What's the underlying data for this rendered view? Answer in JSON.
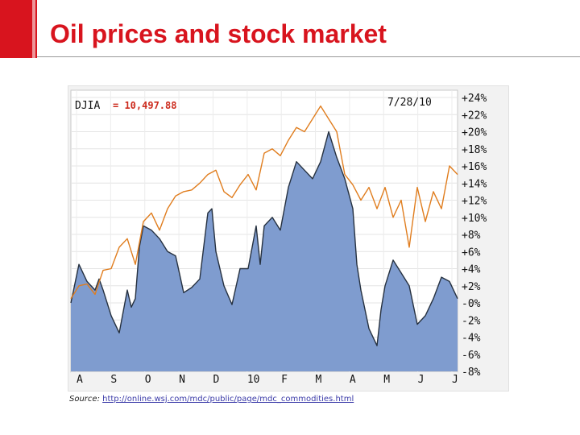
{
  "slide": {
    "title": "Oil prices and stock market",
    "source_label": "Source:",
    "source_url": "http://online.wsj.com/mdc/public/page/mdc_commodities.html"
  },
  "colors": {
    "accent": "#d8141e",
    "area_fill": "#7f9ccf",
    "area_line": "#263140",
    "oil_line": "#e07d1e",
    "value_text": "#cc2b1d"
  },
  "chart_data": {
    "type": "area",
    "header_label": "DJIA",
    "header_value": "= 10,497.88",
    "date_label": "7/28/10",
    "x_tick_labels": [
      "A",
      "S",
      "O",
      "N",
      "D",
      "10",
      "F",
      "M",
      "A",
      "M",
      "J",
      "J"
    ],
    "y_tick_labels": [
      "+24%",
      "+22%",
      "+20%",
      "+18%",
      "+16%",
      "+14%",
      "+12%",
      "+10%",
      "+8%",
      "+6%",
      "+4%",
      "+2%",
      "-0%",
      "-2%",
      "-4%",
      "-6%",
      "-8%"
    ],
    "ylim": [
      -8,
      24
    ],
    "x_range": [
      0,
      48
    ],
    "grid": true,
    "series": [
      {
        "type": "area",
        "x": [
          0,
          1,
          1.5,
          2,
          3,
          3.5,
          4,
          5,
          6,
          7,
          7.5,
          8,
          8.5,
          9,
          10,
          11,
          12,
          13,
          14,
          15,
          16,
          17,
          17.5,
          18,
          19,
          20,
          21,
          22,
          23,
          23.5,
          24,
          25,
          26,
          27,
          28,
          29,
          30,
          31,
          32,
          33,
          34,
          35,
          35.5,
          36,
          37,
          38,
          38.5,
          39,
          40,
          41,
          42,
          43,
          44,
          45,
          46,
          47,
          48
        ],
        "values": [
          0,
          4.5,
          3.5,
          2.5,
          1.5,
          2.8,
          1.5,
          -1.5,
          -3.5,
          1.5,
          -0.5,
          0.5,
          6.5,
          9,
          8.5,
          7.5,
          6,
          5.5,
          1.2,
          1.8,
          2.8,
          10.5,
          11,
          6,
          2,
          -0.2,
          4,
          4,
          9,
          4.5,
          9,
          10,
          8.5,
          13.5,
          16.5,
          15.5,
          14.5,
          16.5,
          20,
          17,
          14.5,
          11,
          4.5,
          1.5,
          -3,
          -5,
          -0.8,
          2,
          5,
          3.5,
          2,
          -2.5,
          -1.5,
          0.5,
          3,
          2.5,
          0.5
        ]
      },
      {
        "type": "line",
        "x": [
          0,
          1,
          2,
          3,
          4,
          5,
          6,
          7,
          8,
          9,
          10,
          11,
          12,
          13,
          14,
          15,
          16,
          17,
          18,
          19,
          20,
          21,
          22,
          23,
          24,
          25,
          26,
          27,
          28,
          29,
          30,
          31,
          32,
          33,
          34,
          35,
          36,
          37,
          38,
          39,
          40,
          41,
          42,
          43,
          44,
          45,
          46,
          47,
          48
        ],
        "values": [
          0.5,
          2,
          2.2,
          1,
          3.8,
          4,
          6.5,
          7.5,
          4.5,
          9.5,
          10.5,
          8.5,
          11,
          12.5,
          13,
          13.2,
          14,
          15,
          15.5,
          13,
          12.3,
          13.8,
          15,
          13.2,
          17.5,
          18,
          17.2,
          19,
          20.5,
          20,
          21.5,
          23,
          21.5,
          20,
          15,
          13.8,
          12,
          13.5,
          11,
          13.5,
          10,
          12,
          6.5,
          13.5,
          9.5,
          13,
          11,
          16,
          15
        ]
      }
    ]
  }
}
